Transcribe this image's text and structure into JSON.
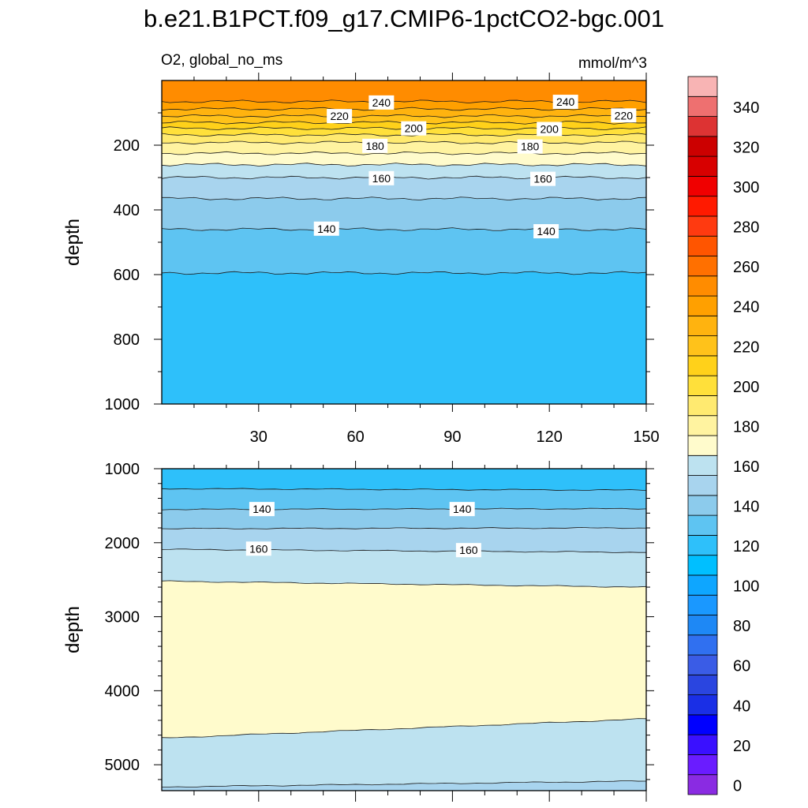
{
  "chart_data": {
    "type": "heatmap",
    "title": "b.e21.B1PCT.f09_g17.CMIP6-1pctCO2-bgc.001",
    "variable": "O2, global_no_ms",
    "units": "mmol/m^3",
    "colorbar": {
      "levels": [
        0,
        10,
        20,
        30,
        40,
        50,
        60,
        70,
        80,
        90,
        100,
        110,
        120,
        130,
        140,
        150,
        160,
        170,
        180,
        190,
        200,
        210,
        220,
        230,
        240,
        250,
        260,
        270,
        280,
        290,
        300,
        310,
        320,
        330,
        340,
        350
      ],
      "tick_labels": [
        "0",
        "20",
        "40",
        "60",
        "80",
        "100",
        "120",
        "140",
        "160",
        "180",
        "200",
        "220",
        "240",
        "260",
        "280",
        "300",
        "320",
        "340"
      ],
      "colors": [
        "#8a2be2",
        "#6a1cff",
        "#3a10ff",
        "#0000ff",
        "#1a2fe6",
        "#2a45e0",
        "#3a5ce6",
        "#3070f0",
        "#1e88f5",
        "#1a98ff",
        "#0ea6ff",
        "#00bfff",
        "#2ec0fa",
        "#5ec4f2",
        "#8ccbec",
        "#a8d4ee",
        "#bde2f0",
        "#fffbcc",
        "#fff3a0",
        "#ffea70",
        "#ffe03a",
        "#ffd11a",
        "#ffc21a",
        "#ffb30f",
        "#ffa000",
        "#ff8c00",
        "#ff7000",
        "#ff5500",
        "#ff3a10",
        "#ff1a00",
        "#f00000",
        "#d80000",
        "#cc0000",
        "#dd3333",
        "#ee7070",
        "#f8b4b4"
      ]
    },
    "panels": [
      {
        "name": "upper",
        "ylabel": "depth",
        "xlabel": "",
        "xlim": [
          0,
          150
        ],
        "ylim": [
          1000,
          0
        ],
        "xticks": [
          30,
          60,
          90,
          120,
          150
        ],
        "yticks": [
          200,
          400,
          600,
          800,
          1000
        ],
        "contour_boundaries_depth": [
          {
            "level": 250,
            "depth": 65
          },
          {
            "level": 240,
            "depth": 88
          },
          {
            "level": 230,
            "depth": 110
          },
          {
            "level": 220,
            "depth": 130
          },
          {
            "level": 210,
            "depth": 148
          },
          {
            "level": 200,
            "depth": 168
          },
          {
            "level": 190,
            "depth": 192
          },
          {
            "level": 180,
            "depth": 225
          },
          {
            "level": 170,
            "depth": 260
          },
          {
            "level": 160,
            "depth": 300
          },
          {
            "level": 150,
            "depth": 365
          },
          {
            "level": 140,
            "depth": 460
          },
          {
            "level": 130,
            "depth": 595
          }
        ],
        "contour_labels": [
          {
            "text": "240",
            "x": 68,
            "depth": 68
          },
          {
            "text": "240",
            "x": 125,
            "depth": 66
          },
          {
            "text": "220",
            "x": 55,
            "depth": 110
          },
          {
            "text": "220",
            "x": 143,
            "depth": 108
          },
          {
            "text": "200",
            "x": 78,
            "depth": 148
          },
          {
            "text": "200",
            "x": 120,
            "depth": 150
          },
          {
            "text": "180",
            "x": 66,
            "depth": 202
          },
          {
            "text": "180",
            "x": 114,
            "depth": 204
          },
          {
            "text": "160",
            "x": 68,
            "depth": 302
          },
          {
            "text": "160",
            "x": 118,
            "depth": 304
          },
          {
            "text": "140",
            "x": 51,
            "depth": 458
          },
          {
            "text": "140",
            "x": 119,
            "depth": 466
          }
        ]
      },
      {
        "name": "lower",
        "ylabel": "depth",
        "xlabel": "",
        "xlim": [
          0,
          150
        ],
        "ylim": [
          5350,
          1000
        ],
        "xticks": [
          30,
          60,
          90,
          120,
          150
        ],
        "yticks": [
          1000,
          2000,
          3000,
          4000,
          5000
        ],
        "contour_boundaries_depth": [
          {
            "level": 130,
            "depth_start": 1270,
            "depth_end": 1290
          },
          {
            "level": 140,
            "depth_start": 1550,
            "depth_end": 1540
          },
          {
            "level": 150,
            "depth_start": 1810,
            "depth_end": 1800
          },
          {
            "level": 160,
            "depth_start": 2090,
            "depth_end": 2130
          },
          {
            "level": 170,
            "depth_start": 2520,
            "depth_end": 2600
          },
          {
            "level": 170,
            "depth_start": 4640,
            "depth_end": 4380
          },
          {
            "level": 160,
            "depth_start": 5300,
            "depth_end": 5220
          }
        ],
        "contour_labels": [
          {
            "text": "140",
            "x": 31,
            "depth": 1545
          },
          {
            "text": "140",
            "x": 93,
            "depth": 1545
          },
          {
            "text": "160",
            "x": 30,
            "depth": 2080
          },
          {
            "text": "160",
            "x": 95,
            "depth": 2100
          }
        ]
      }
    ]
  }
}
